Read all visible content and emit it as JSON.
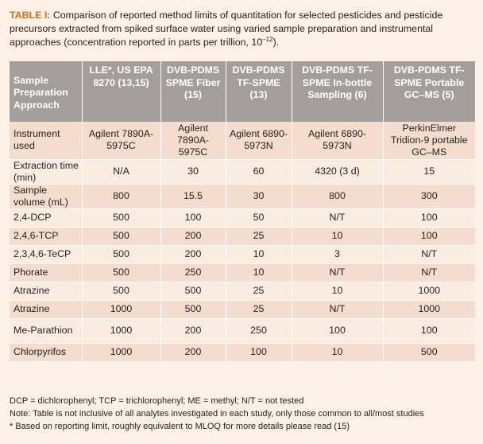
{
  "caption": {
    "label": "TABLE I:",
    "text": "Comparison of reported method limits of quantitation for selected pesticides and pesticide precursors extracted from spiked surface water using varied sample preparation and instrumental approaches (concentration reported in parts per trillion, 10",
    "exponent": "–12",
    "end": ")."
  },
  "table": {
    "headers": [
      "Sample Preparation Approach",
      "LLE*, US EPA 8270 (13,15)",
      "DVB-PDMS SPME Fiber (15)",
      "DVB-PDMS TF-SPME (13)",
      "DVB-PDMS TF-SPME In-bottle Sampling (6)",
      "DVB-PDMS TF-SPME Portable GC–MS (5)"
    ],
    "rows": [
      [
        "Instrument used",
        "Agilent 7890A-5975C",
        "Agilent 7890A-5975C",
        "Agilent 6890-5973N",
        "Agilent 6890-5973N",
        "PerkinElmer Tridion-9 portable GC–MS"
      ],
      [
        "Extraction time (min)",
        "N/A",
        "30",
        "60",
        "4320 (3 d)",
        "15"
      ],
      [
        "Sample volume (mL)",
        "800",
        "15.5",
        "30",
        "800",
        "300"
      ],
      [
        "2,4-DCP",
        "500",
        "100",
        "50",
        "N/T",
        "100"
      ],
      [
        "2,4,6-TCP",
        "500",
        "200",
        "25",
        "10",
        "100"
      ],
      [
        "2,3,4,6-TeCP",
        "500",
        "200",
        "10",
        "3",
        "N/T"
      ],
      [
        "Phorate",
        "500",
        "250",
        "10",
        "N/T",
        "N/T"
      ],
      [
        "Atrazine",
        "500",
        "500",
        "25",
        "10",
        "1000"
      ],
      [
        "Atrazine",
        "1000",
        "500",
        "25",
        "N/T",
        "1000"
      ],
      [
        "Me-Parathion",
        "1000",
        "200",
        "250",
        "100",
        "100"
      ],
      [
        "Chlorpyrifos",
        "1000",
        "200",
        "100",
        "10",
        "500"
      ]
    ]
  },
  "notes": [
    "DCP = dichlorophenyl; TCP = trichlorophenyl; ME = methyl; N/T = not tested",
    "Note: Table is not inclusive of all analytes investigated in each study, only those common to all/most studies",
    "* Based on reporting limit, roughly equivalent to MLOQ for more details please read (15)"
  ]
}
